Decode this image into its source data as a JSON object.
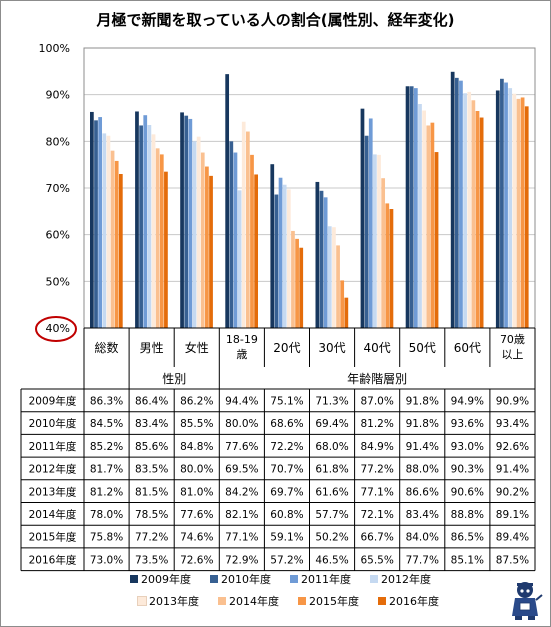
{
  "chart_data": {
    "type": "bar",
    "title": "月極で新聞を取っている人の割合(属性別、経年変化)",
    "categories": [
      "総数",
      "男性",
      "女性",
      "18-19歳",
      "20代",
      "30代",
      "40代",
      "50代",
      "60代",
      "70歳以上"
    ],
    "category_lines": [
      [
        "総数"
      ],
      [
        "男性"
      ],
      [
        "女性"
      ],
      [
        "18-19",
        "歳"
      ],
      [
        "20代"
      ],
      [
        "30代"
      ],
      [
        "40代"
      ],
      [
        "50代"
      ],
      [
        "60代"
      ],
      [
        "70歳",
        "以上"
      ]
    ],
    "groups": [
      {
        "label": "性別",
        "categories": [
          "男性",
          "女性"
        ]
      },
      {
        "label": "年齢階層別",
        "categories": [
          "18-19歳",
          "20代",
          "30代",
          "40代",
          "50代",
          "60代",
          "70歳以上"
        ]
      }
    ],
    "ylim": [
      40,
      100
    ],
    "yticks": [
      "40%",
      "50%",
      "60%",
      "70%",
      "80%",
      "90%",
      "100%"
    ],
    "grid": true,
    "highlighted_tick": "40%",
    "legend_position": "bottom",
    "series": [
      {
        "name": "2009年度",
        "color": "#17375e",
        "values": [
          86.3,
          86.4,
          86.2,
          94.4,
          75.1,
          71.3,
          87.0,
          91.8,
          94.9,
          90.9
        ]
      },
      {
        "name": "2010年度",
        "color": "#376092",
        "values": [
          84.5,
          83.4,
          85.5,
          80.0,
          68.6,
          69.4,
          81.2,
          91.8,
          93.6,
          93.4
        ]
      },
      {
        "name": "2011年度",
        "color": "#6f9bd6",
        "values": [
          85.2,
          85.6,
          84.8,
          77.6,
          72.2,
          68.0,
          84.9,
          91.4,
          93.0,
          92.6
        ]
      },
      {
        "name": "2012年度",
        "color": "#c5d9f1",
        "values": [
          81.7,
          83.5,
          80.0,
          69.5,
          70.7,
          61.8,
          77.2,
          88.0,
          90.3,
          91.4
        ]
      },
      {
        "name": "2013年度",
        "color": "#fdeada",
        "values": [
          81.2,
          81.5,
          81.0,
          84.2,
          69.7,
          61.6,
          77.1,
          86.6,
          90.6,
          90.2
        ]
      },
      {
        "name": "2014年度",
        "color": "#fac090",
        "values": [
          78.0,
          78.5,
          77.6,
          82.1,
          60.8,
          57.7,
          72.1,
          83.4,
          88.8,
          89.1
        ]
      },
      {
        "name": "2015年度",
        "color": "#f79646",
        "values": [
          75.8,
          77.2,
          74.6,
          77.1,
          59.1,
          50.2,
          66.7,
          84.0,
          86.5,
          89.4
        ]
      },
      {
        "name": "2016年度",
        "color": "#e46c0a",
        "values": [
          73.0,
          73.5,
          72.6,
          72.9,
          57.2,
          46.5,
          65.5,
          77.7,
          85.1,
          87.5
        ]
      }
    ],
    "table_rows": [
      {
        "label": "2009年度",
        "cells": [
          "86.3%",
          "86.4%",
          "86.2%",
          "94.4%",
          "75.1%",
          "71.3%",
          "87.0%",
          "91.8%",
          "94.9%",
          "90.9%"
        ]
      },
      {
        "label": "2010年度",
        "cells": [
          "84.5%",
          "83.4%",
          "85.5%",
          "80.0%",
          "68.6%",
          "69.4%",
          "81.2%",
          "91.8%",
          "93.6%",
          "93.4%"
        ]
      },
      {
        "label": "2011年度",
        "cells": [
          "85.2%",
          "85.6%",
          "84.8%",
          "77.6%",
          "72.2%",
          "68.0%",
          "84.9%",
          "91.4%",
          "93.0%",
          "92.6%"
        ]
      },
      {
        "label": "2012年度",
        "cells": [
          "81.7%",
          "83.5%",
          "80.0%",
          "69.5%",
          "70.7%",
          "61.8%",
          "77.2%",
          "88.0%",
          "90.3%",
          "91.4%"
        ]
      },
      {
        "label": "2013年度",
        "cells": [
          "81.2%",
          "81.5%",
          "81.0%",
          "84.2%",
          "69.7%",
          "61.6%",
          "77.1%",
          "86.6%",
          "90.6%",
          "90.2%"
        ]
      },
      {
        "label": "2014年度",
        "cells": [
          "78.0%",
          "78.5%",
          "77.6%",
          "82.1%",
          "60.8%",
          "57.7%",
          "72.1%",
          "83.4%",
          "88.8%",
          "89.1%"
        ]
      },
      {
        "label": "2015年度",
        "cells": [
          "75.8%",
          "77.2%",
          "74.6%",
          "77.1%",
          "59.1%",
          "50.2%",
          "66.7%",
          "84.0%",
          "86.5%",
          "89.4%"
        ]
      },
      {
        "label": "2016年度",
        "cells": [
          "73.0%",
          "73.5%",
          "72.6%",
          "72.9%",
          "57.2%",
          "46.5%",
          "65.5%",
          "77.7%",
          "85.1%",
          "87.5%"
        ]
      }
    ]
  }
}
